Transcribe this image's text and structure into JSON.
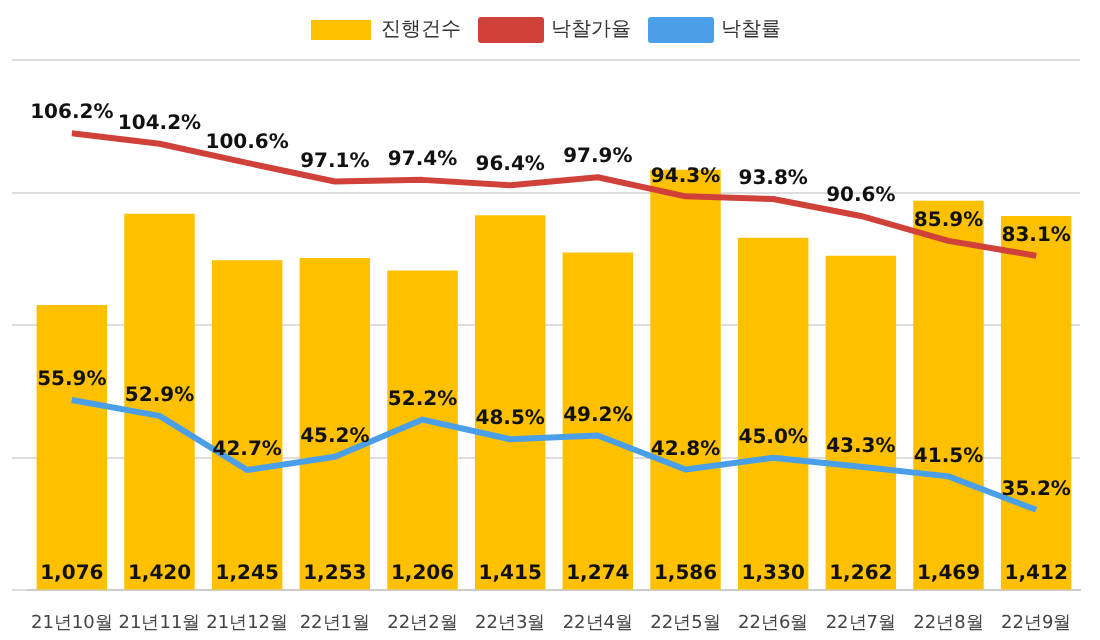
{
  "chart_data": {
    "type": "bar",
    "categories": [
      "21년10월",
      "21년11월",
      "21년12월",
      "22년1월",
      "22년2월",
      "22년3월",
      "22년4월",
      "22년5월",
      "22년6월",
      "22년7월",
      "22년8월",
      "22년9월"
    ],
    "series": [
      {
        "name": "진행건수",
        "color": "#ffc000",
        "values": [
          1076,
          1420,
          1245,
          1253,
          1206,
          1415,
          1274,
          1586,
          1330,
          1262,
          1469,
          1412
        ],
        "value_labels": [
          "1,076",
          "1,420",
          "1,245",
          "1,253",
          "1,206",
          "1,415",
          "1,274",
          "1,586",
          "1,330",
          "1,262",
          "1,469",
          "1,412"
        ]
      },
      {
        "name": "낙찰가율",
        "type": "line",
        "axis": "y2",
        "color": "#d0413a",
        "values": [
          106.2,
          104.2,
          100.6,
          97.1,
          97.4,
          96.4,
          97.9,
          94.3,
          93.8,
          90.6,
          85.9,
          83.1
        ],
        "value_labels": [
          "106.2%",
          "104.2%",
          "100.6%",
          "97.1%",
          "97.4%",
          "96.4%",
          "97.9%",
          "94.3%",
          "93.8%",
          "90.6%",
          "85.9%",
          "83.1%"
        ]
      },
      {
        "name": "낙찰률",
        "type": "line",
        "axis": "y2",
        "color": "#4a9fe8",
        "values": [
          55.9,
          52.9,
          42.7,
          45.2,
          52.2,
          48.5,
          49.2,
          42.8,
          45.0,
          43.3,
          41.5,
          35.2
        ],
        "value_labels": [
          "55.9%",
          "52.9%",
          "42.7%",
          "45.2%",
          "52.2%",
          "48.5%",
          "49.2%",
          "42.8%",
          "45.0%",
          "43.3%",
          "41.5%",
          "35.2%"
        ]
      }
    ],
    "grid": "y",
    "legend": "top",
    "tick_labels": "x",
    "marker": "none",
    "line_style": "solid"
  }
}
